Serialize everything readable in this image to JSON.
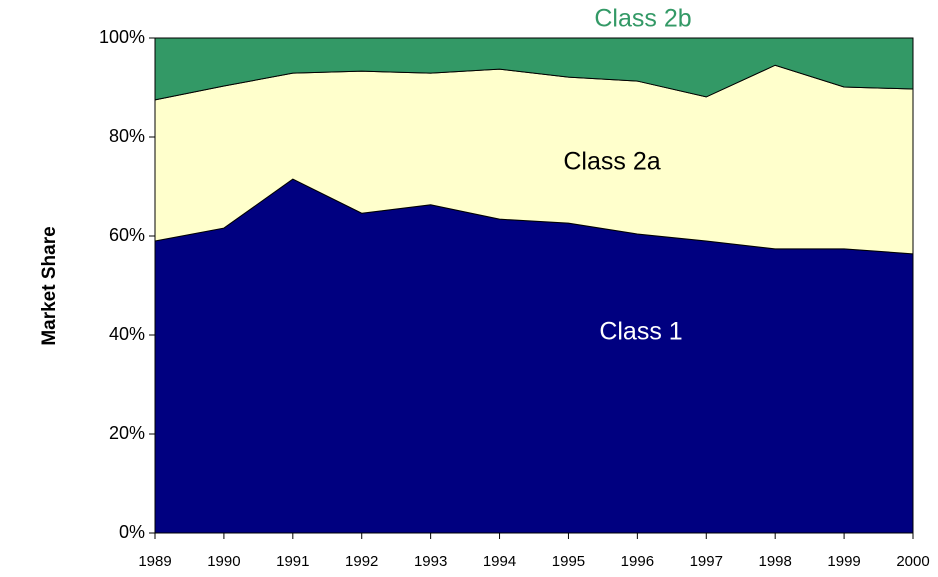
{
  "chart_data": {
    "type": "stacked_area",
    "y_label": "Market Share",
    "categories": [
      "1989",
      "1990",
      "1991",
      "1992",
      "1993",
      "1994",
      "1995",
      "1996",
      "1997",
      "1998",
      "1999",
      "2000"
    ],
    "series": [
      {
        "name": "Class 1",
        "color": "#000080",
        "label_color": "#ffffff",
        "values": [
          59.0,
          61.6,
          71.5,
          64.6,
          66.3,
          63.4,
          62.6,
          60.4,
          59.0,
          57.4,
          57.4,
          56.4
        ]
      },
      {
        "name": "Class 2a",
        "color": "#ffffcc",
        "label_color": "#000000",
        "values": [
          28.5,
          28.7,
          21.4,
          28.7,
          26.6,
          30.3,
          29.5,
          30.9,
          29.1,
          37.1,
          32.7,
          33.3
        ]
      },
      {
        "name": "Class 2b",
        "color": "#339966",
        "label_color": "#339966",
        "values": [
          12.5,
          9.7,
          7.1,
          6.7,
          7.1,
          6.3,
          7.9,
          8.7,
          11.9,
          5.5,
          9.9,
          10.3
        ]
      }
    ],
    "ylim": [
      0,
      100
    ],
    "yticks": [
      {
        "value": 0,
        "label": "0%"
      },
      {
        "value": 20,
        "label": "20%"
      },
      {
        "value": 40,
        "label": "40%"
      },
      {
        "value": 60,
        "label": "60%"
      },
      {
        "value": 80,
        "label": "80%"
      },
      {
        "value": 100,
        "label": "100%"
      }
    ],
    "grid": false
  }
}
